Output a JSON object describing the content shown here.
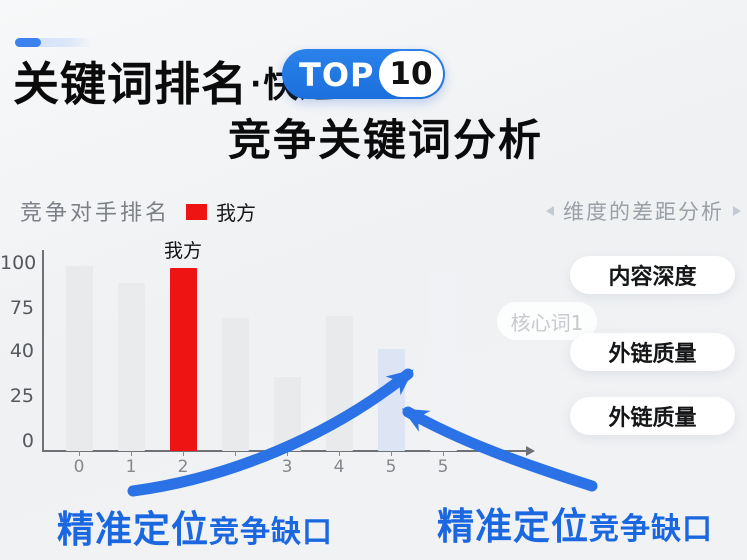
{
  "header": {
    "title_main": "关键词排名",
    "title_dot": "·",
    "title_fast": "快速",
    "badge_top": "TOP",
    "badge_num": "10",
    "subtitle": "竞争关键词分析"
  },
  "chart": {
    "title": "竞争对手排名",
    "legend_label": "我方"
  },
  "chart_data": {
    "type": "bar",
    "title": "竞争对手排名",
    "categories": [
      "0",
      "1",
      "2",
      "",
      "3",
      "4",
      "5",
      "5",
      ""
    ],
    "values": [
      100,
      91,
      99,
      72,
      40,
      73,
      55,
      97,
      0
    ],
    "bar_colors": [
      "#e9eaec",
      "#e9ebed",
      "#ee1414",
      "#e9eaec",
      "#e8eaec",
      "#e9eaec",
      "#dde4f4",
      "#f0f2f5",
      "transparent"
    ],
    "highlight": {
      "index": 2,
      "label": "我方",
      "color": "#ee1414"
    },
    "y_ticks": [
      "100",
      "75",
      "40",
      "25",
      "0"
    ],
    "ylim": [
      0,
      100
    ],
    "legend": [
      "我方"
    ],
    "legend_color": "#ee1414",
    "grid": false,
    "xlabel": "",
    "ylabel": ""
  },
  "panel": {
    "header": "维度的差距分析",
    "faded_tag": "核心词1",
    "tags": [
      "内容深度",
      "外链质量",
      "外链质量"
    ]
  },
  "callouts": {
    "left_strong": "精准定位",
    "left_rest": "竞争缺口",
    "right_strong": "精准定位",
    "right_rest": "竞争缺口"
  },
  "colors": {
    "accent_blue": "#2176e4",
    "arrow_blue": "#2b72e6",
    "highlight_red": "#ee1414",
    "callout_blue": "#1a67df"
  }
}
